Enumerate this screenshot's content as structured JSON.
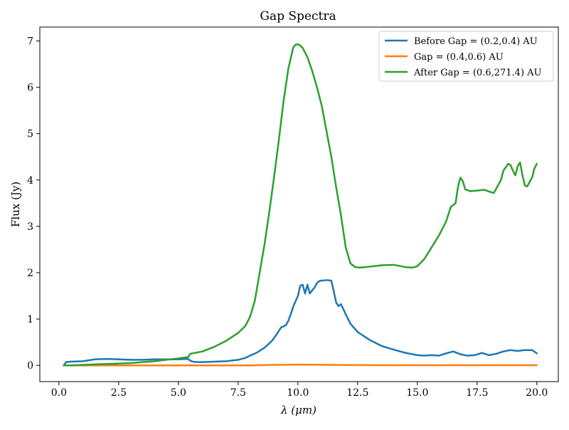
{
  "chart_data": {
    "type": "line",
    "title": "Gap Spectra",
    "xlabel": "λ (μm)",
    "ylabel": "Flux (Jy)",
    "xlim": [
      -0.8,
      20.9
    ],
    "ylim": [
      -0.35,
      7.3
    ],
    "xticks": [
      0.0,
      2.5,
      5.0,
      7.5,
      10.0,
      12.5,
      15.0,
      17.5,
      20.0
    ],
    "xtick_labels": [
      "0.0",
      "2.5",
      "5.0",
      "7.5",
      "10.0",
      "12.5",
      "15.0",
      "17.5",
      "20.0"
    ],
    "yticks": [
      0,
      1,
      2,
      3,
      4,
      5,
      6,
      7
    ],
    "ytick_labels": [
      "0",
      "1",
      "2",
      "3",
      "4",
      "5",
      "6",
      "7"
    ],
    "grid": false,
    "legend_position": "top-right",
    "series": [
      {
        "name": "Before Gap = (0.2,0.4) AU",
        "color": "#1f77b4",
        "x": [
          0.2,
          0.3,
          0.5,
          1.0,
          1.5,
          2.0,
          2.5,
          3.0,
          3.5,
          4.0,
          4.5,
          5.0,
          5.4,
          5.5,
          5.6,
          5.8,
          6.0,
          6.5,
          7.0,
          7.5,
          7.8,
          8.0,
          8.3,
          8.6,
          8.9,
          9.1,
          9.3,
          9.4,
          9.5,
          9.6,
          9.7,
          9.8,
          9.9,
          10.0,
          10.1,
          10.2,
          10.3,
          10.4,
          10.5,
          10.6,
          10.7,
          10.8,
          10.9,
          11.0,
          11.2,
          11.4,
          11.5,
          11.6,
          11.7,
          11.8,
          11.9,
          12.0,
          12.2,
          12.5,
          13.0,
          13.5,
          14.0,
          14.5,
          15.0,
          15.3,
          15.6,
          15.9,
          16.2,
          16.5,
          16.8,
          17.1,
          17.4,
          17.7,
          18.0,
          18.3,
          18.6,
          18.9,
          19.2,
          19.5,
          19.8,
          20.0
        ],
        "y": [
          0.0,
          0.07,
          0.08,
          0.09,
          0.13,
          0.14,
          0.13,
          0.12,
          0.12,
          0.13,
          0.13,
          0.13,
          0.14,
          0.1,
          0.08,
          0.07,
          0.07,
          0.08,
          0.09,
          0.12,
          0.16,
          0.21,
          0.28,
          0.38,
          0.52,
          0.66,
          0.82,
          0.84,
          0.87,
          0.96,
          1.1,
          1.26,
          1.38,
          1.5,
          1.72,
          1.74,
          1.55,
          1.74,
          1.55,
          1.62,
          1.68,
          1.78,
          1.82,
          1.83,
          1.84,
          1.83,
          1.6,
          1.36,
          1.28,
          1.32,
          1.22,
          1.1,
          0.9,
          0.72,
          0.55,
          0.42,
          0.34,
          0.27,
          0.22,
          0.21,
          0.22,
          0.21,
          0.26,
          0.3,
          0.24,
          0.21,
          0.22,
          0.27,
          0.22,
          0.25,
          0.3,
          0.33,
          0.31,
          0.33,
          0.33,
          0.26
        ]
      },
      {
        "name": "Gap = (0.4,0.6) AU",
        "color": "#ff7f0e",
        "x": [
          0.2,
          2.0,
          4.0,
          6.0,
          8.0,
          9.0,
          10.0,
          11.0,
          12.0,
          13.0,
          14.0,
          16.0,
          18.0,
          20.0
        ],
        "y": [
          0.0,
          0.0,
          0.0,
          0.0,
          0.0,
          0.01,
          0.015,
          0.012,
          0.008,
          0.005,
          0.004,
          0.003,
          0.003,
          0.003
        ]
      },
      {
        "name": "After Gap = (0.6,271.4) AU",
        "color": "#2ca02c",
        "x": [
          0.2,
          0.5,
          1.0,
          1.5,
          2.0,
          2.5,
          3.0,
          3.5,
          4.0,
          4.5,
          5.0,
          5.4,
          5.5,
          5.6,
          6.0,
          6.5,
          7.0,
          7.5,
          7.8,
          8.0,
          8.2,
          8.4,
          8.6,
          8.8,
          9.0,
          9.2,
          9.4,
          9.6,
          9.8,
          9.9,
          10.0,
          10.1,
          10.2,
          10.4,
          10.6,
          10.8,
          11.0,
          11.2,
          11.4,
          11.6,
          11.8,
          12.0,
          12.2,
          12.4,
          12.6,
          12.8,
          13.0,
          13.5,
          14.0,
          14.5,
          14.8,
          15.0,
          15.3,
          15.6,
          15.9,
          16.2,
          16.4,
          16.6,
          16.7,
          16.8,
          16.9,
          17.0,
          17.2,
          17.5,
          17.8,
          18.0,
          18.2,
          18.5,
          18.6,
          18.8,
          18.9,
          19.0,
          19.1,
          19.2,
          19.3,
          19.4,
          19.5,
          19.6,
          19.7,
          19.8,
          19.9,
          20.0
        ],
        "y": [
          0.0,
          0.0,
          0.01,
          0.02,
          0.03,
          0.04,
          0.05,
          0.07,
          0.09,
          0.12,
          0.15,
          0.18,
          0.25,
          0.26,
          0.3,
          0.4,
          0.53,
          0.7,
          0.85,
          1.05,
          1.4,
          2.0,
          2.6,
          3.3,
          4.05,
          4.85,
          5.7,
          6.4,
          6.85,
          6.92,
          6.93,
          6.9,
          6.85,
          6.65,
          6.35,
          6.0,
          5.6,
          5.05,
          4.5,
          3.85,
          3.25,
          2.55,
          2.2,
          2.12,
          2.11,
          2.12,
          2.13,
          2.16,
          2.17,
          2.12,
          2.11,
          2.14,
          2.3,
          2.55,
          2.8,
          3.1,
          3.42,
          3.5,
          3.85,
          4.05,
          3.98,
          3.8,
          3.76,
          3.77,
          3.79,
          3.75,
          3.72,
          4.0,
          4.2,
          4.35,
          4.32,
          4.2,
          4.1,
          4.3,
          4.38,
          4.1,
          3.88,
          3.86,
          3.96,
          4.05,
          4.25,
          4.35
        ]
      }
    ]
  }
}
